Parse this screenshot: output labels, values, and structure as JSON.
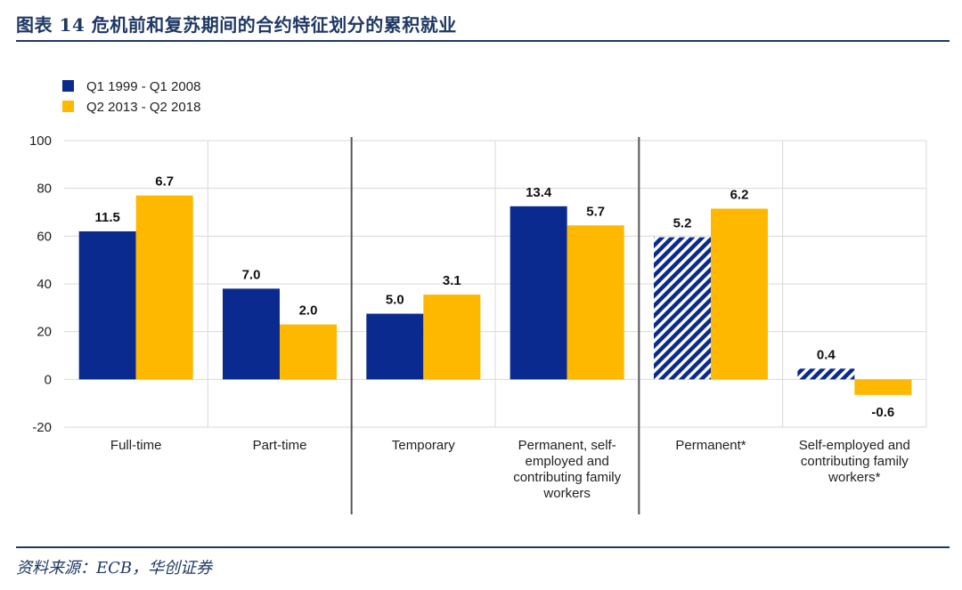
{
  "header": {
    "title": "图表 14 危机前和复苏期间的合约特征划分的累积就业"
  },
  "footer": {
    "source": "资料来源：ECB，华创证券"
  },
  "colors": {
    "series1": "#0a2a8f",
    "series2": "#ffb800",
    "title": "#1f3864",
    "grid": "#d9d9d9",
    "divider": "#555555"
  },
  "chart_data": {
    "type": "bar",
    "categories": [
      [
        "Full-time"
      ],
      [
        "Part-time"
      ],
      [
        "Temporary"
      ],
      [
        "Permanent, self-",
        "employed and",
        "contributing family",
        "workers"
      ],
      [
        "Permanent*"
      ],
      [
        "Self-employed and",
        "contributing family",
        "workers*"
      ]
    ],
    "series": [
      {
        "name": "Q1 1999 - Q1 2008",
        "values": [
          62,
          38,
          27.5,
          72.5,
          59.5,
          4.5
        ],
        "labels": [
          "11.5",
          "7.0",
          "5.0",
          "13.4",
          "5.2",
          "0.4"
        ],
        "hatched": [
          false,
          false,
          false,
          false,
          true,
          true
        ]
      },
      {
        "name": "Q2 2013 - Q2 2018",
        "values": [
          77,
          23,
          35.5,
          64.5,
          71.5,
          -6.5
        ],
        "labels": [
          "6.7",
          "2.0",
          "3.1",
          "5.7",
          "6.2",
          "-0.6"
        ],
        "hatched": [
          false,
          false,
          false,
          false,
          false,
          false
        ]
      }
    ],
    "ylim": [
      -20,
      100
    ],
    "yticks": [
      -20,
      0,
      20,
      40,
      60,
      80,
      100
    ],
    "group_dividers_after": [
      1,
      3
    ],
    "grid": true,
    "legend": "top-left",
    "title": "",
    "xlabel": "",
    "ylabel": ""
  }
}
